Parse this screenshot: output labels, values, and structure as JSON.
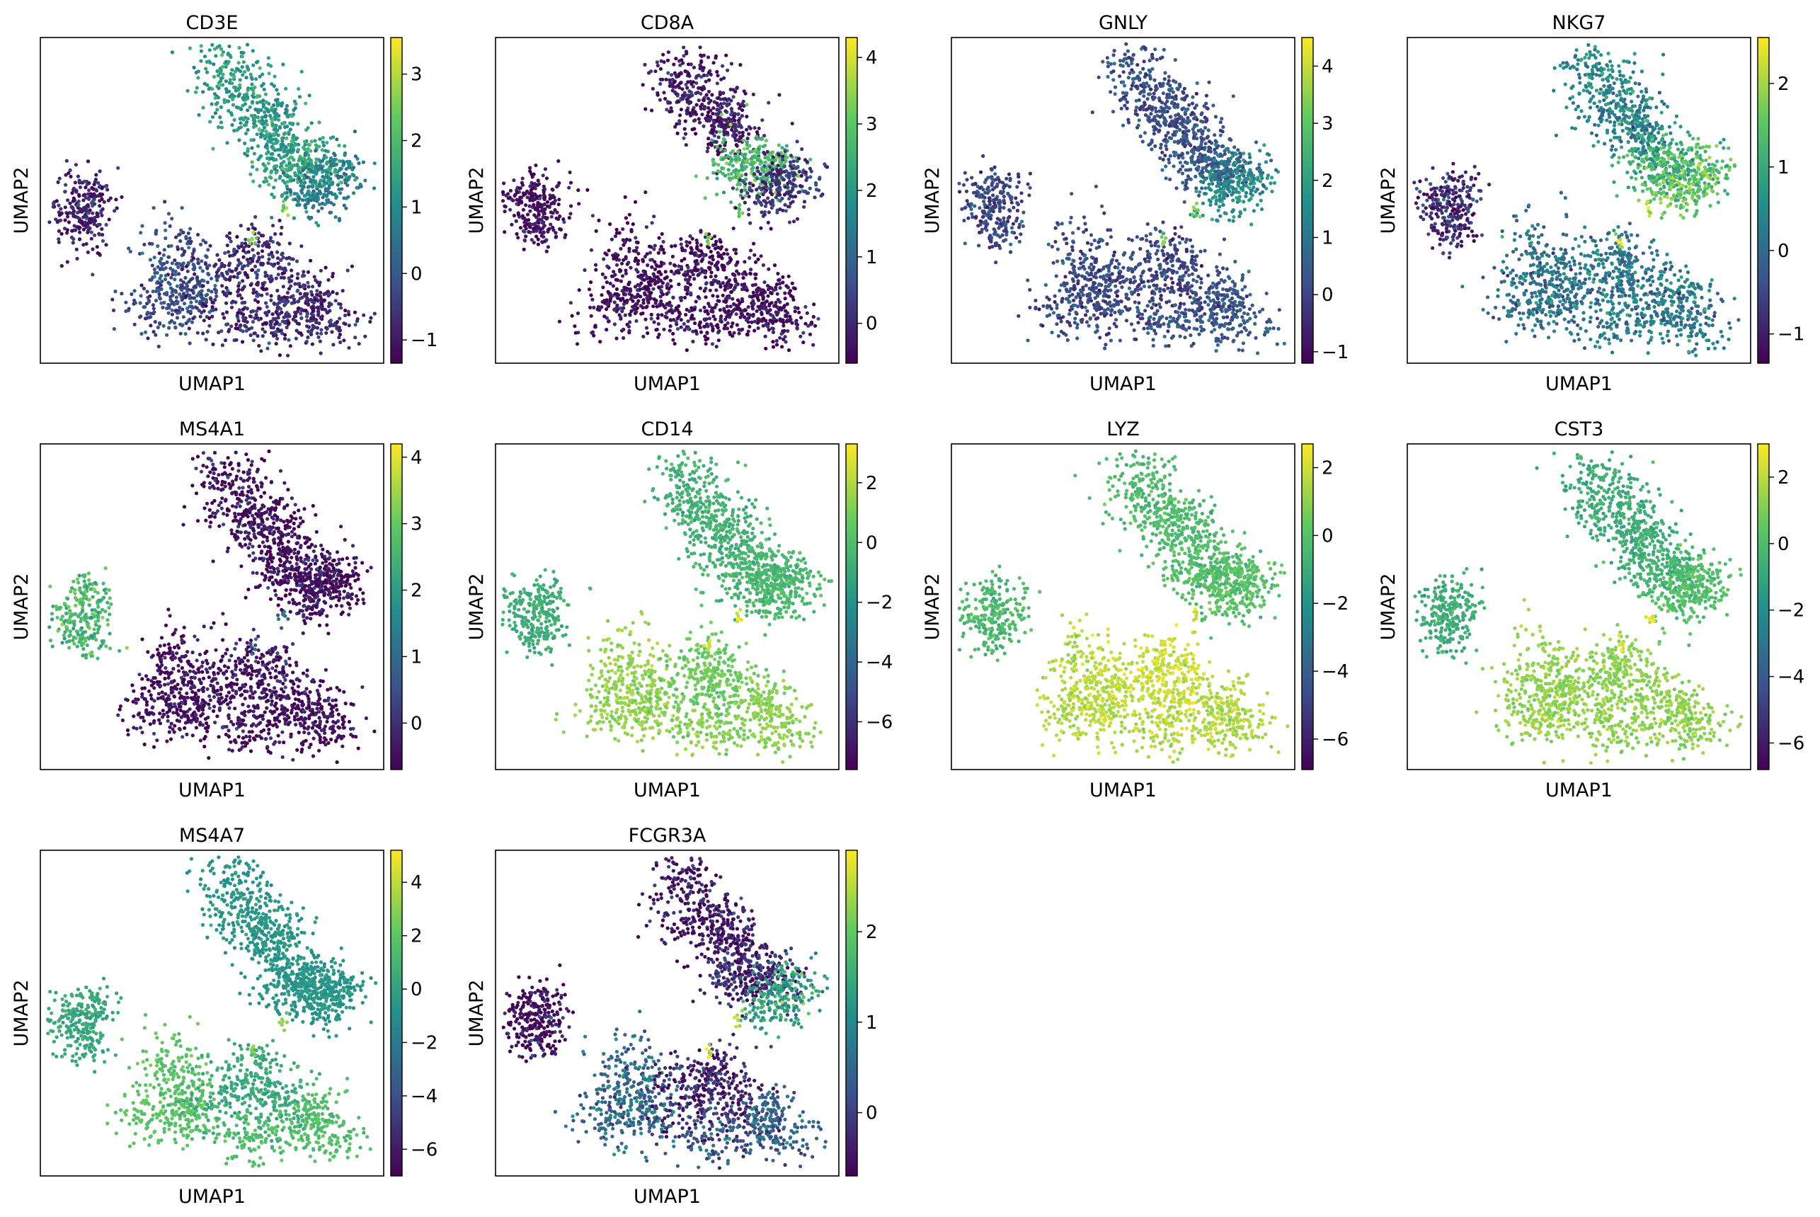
{
  "figure": {
    "xlabel": "UMAP1",
    "ylabel": "UMAP2"
  },
  "colormap": {
    "name": "viridis",
    "stops": [
      "#440154",
      "#3b528b",
      "#21918c",
      "#5ec962",
      "#fde725"
    ]
  },
  "chart_data": [
    {
      "type": "scatter",
      "title": "CD3E",
      "xlabel": "UMAP1",
      "ylabel": "UMAP2",
      "colorbar_range": [
        -1.35,
        3.55
      ],
      "colorbar_ticks": [
        -1,
        0,
        1,
        2,
        3
      ],
      "colorbar_tick_labels": [
        "−1",
        "0",
        "1",
        "2",
        "3"
      ],
      "cluster_values": {
        "tcell_upper": 1.3,
        "tcell_mid": 1.5,
        "tcell_right": 0.7,
        "bcell": -0.9,
        "mono_left": -0.2,
        "mono_center": -0.7,
        "mono_bottom": -0.8,
        "bridge": 2.6
      }
    },
    {
      "type": "scatter",
      "title": "CD8A",
      "xlabel": "UMAP1",
      "ylabel": "UMAP2",
      "colorbar_range": [
        -0.6,
        4.3
      ],
      "colorbar_ticks": [
        0,
        1,
        2,
        3,
        4
      ],
      "colorbar_tick_labels": [
        "0",
        "1",
        "2",
        "3",
        "4"
      ],
      "cluster_values": {
        "tcell_upper": -0.2,
        "tcell_mid": 2.8,
        "tcell_right": 0.2,
        "bcell": -0.4,
        "mono_left": -0.4,
        "mono_center": -0.4,
        "mono_bottom": -0.4,
        "bridge": 3.0
      }
    },
    {
      "type": "scatter",
      "title": "GNLY",
      "xlabel": "UMAP1",
      "ylabel": "UMAP2",
      "colorbar_range": [
        -1.2,
        4.5
      ],
      "colorbar_ticks": [
        -1,
        0,
        1,
        2,
        3,
        4
      ],
      "colorbar_tick_labels": [
        "−1",
        "0",
        "1",
        "2",
        "3",
        "4"
      ],
      "cluster_values": {
        "tcell_upper": 0.2,
        "tcell_mid": 0.4,
        "tcell_right": 1.6,
        "bcell": 0.0,
        "mono_left": 0.1,
        "mono_center": 0.0,
        "mono_bottom": 0.4,
        "bridge": 3.2
      }
    },
    {
      "type": "scatter",
      "title": "NKG7",
      "xlabel": "UMAP1",
      "ylabel": "UMAP2",
      "colorbar_range": [
        -1.35,
        2.55
      ],
      "colorbar_ticks": [
        -1,
        0,
        1,
        2
      ],
      "colorbar_tick_labels": [
        "−1",
        "0",
        "1",
        "2"
      ],
      "cluster_values": {
        "tcell_upper": 0.4,
        "tcell_mid": 1.1,
        "tcell_right": 1.5,
        "bcell": -0.9,
        "mono_left": 0.1,
        "mono_center": 0.2,
        "mono_bottom": 0.3,
        "bridge": 2.3
      }
    },
    {
      "type": "scatter",
      "title": "MS4A1",
      "xlabel": "UMAP1",
      "ylabel": "UMAP2",
      "colorbar_range": [
        -0.7,
        4.2
      ],
      "colorbar_ticks": [
        0,
        1,
        2,
        3,
        4
      ],
      "colorbar_tick_labels": [
        "0",
        "1",
        "2",
        "3",
        "4"
      ],
      "cluster_values": {
        "tcell_upper": -0.5,
        "tcell_mid": -0.5,
        "tcell_right": -0.5,
        "bcell": 2.6,
        "mono_left": -0.5,
        "mono_center": -0.4,
        "mono_bottom": -0.5,
        "bridge": 1.0
      }
    },
    {
      "type": "scatter",
      "title": "CD14",
      "xlabel": "UMAP1",
      "ylabel": "UMAP2",
      "colorbar_range": [
        -7.6,
        3.3
      ],
      "colorbar_ticks": [
        -6,
        -4,
        -2,
        0,
        2
      ],
      "colorbar_tick_labels": [
        "−6",
        "−4",
        "−2",
        "0",
        "2"
      ],
      "cluster_values": {
        "tcell_upper": -0.6,
        "tcell_mid": -0.4,
        "tcell_right": -0.2,
        "bcell": -0.8,
        "mono_left": 1.5,
        "mono_center": 0.8,
        "mono_bottom": 1.4,
        "bridge": 2.6
      }
    },
    {
      "type": "scatter",
      "title": "LYZ",
      "xlabel": "UMAP1",
      "ylabel": "UMAP2",
      "colorbar_range": [
        -6.9,
        2.7
      ],
      "colorbar_ticks": [
        -6,
        -4,
        -2,
        0,
        2
      ],
      "colorbar_tick_labels": [
        "−6",
        "−4",
        "−2",
        "0",
        "2"
      ],
      "cluster_values": {
        "tcell_upper": -0.3,
        "tcell_mid": -0.2,
        "tcell_right": 0.0,
        "bcell": -0.4,
        "mono_left": 1.6,
        "mono_center": 1.9,
        "mono_bottom": 1.5,
        "bridge": 2.2
      }
    },
    {
      "type": "scatter",
      "title": "CST3",
      "xlabel": "UMAP1",
      "ylabel": "UMAP2",
      "colorbar_range": [
        -6.8,
        3.0
      ],
      "colorbar_ticks": [
        -6,
        -4,
        -2,
        0,
        2
      ],
      "colorbar_tick_labels": [
        "−6",
        "−4",
        "−2",
        "0",
        "2"
      ],
      "cluster_values": {
        "tcell_upper": -0.7,
        "tcell_mid": -0.4,
        "tcell_right": 0.1,
        "bcell": -0.7,
        "mono_left": 1.4,
        "mono_center": 1.3,
        "mono_bottom": 1.3,
        "bridge": 2.7
      }
    },
    {
      "type": "scatter",
      "title": "MS4A7",
      "xlabel": "UMAP1",
      "ylabel": "UMAP2",
      "colorbar_range": [
        -7.0,
        5.2
      ],
      "colorbar_ticks": [
        -6,
        -4,
        -2,
        0,
        2,
        4
      ],
      "colorbar_tick_labels": [
        "−6",
        "−4",
        "−2",
        "0",
        "2",
        "4"
      ],
      "cluster_values": {
        "tcell_upper": -0.6,
        "tcell_mid": -0.7,
        "tcell_right": -0.6,
        "bcell": 0.3,
        "mono_left": 1.9,
        "mono_center": 0.4,
        "mono_bottom": 1.6,
        "bridge": 3.0
      }
    },
    {
      "type": "scatter",
      "title": "FCGR3A",
      "xlabel": "UMAP1",
      "ylabel": "UMAP2",
      "colorbar_range": [
        -0.7,
        2.9
      ],
      "colorbar_ticks": [
        0,
        1,
        2
      ],
      "colorbar_tick_labels": [
        "0",
        "1",
        "2"
      ],
      "cluster_values": {
        "tcell_upper": -0.5,
        "tcell_mid": -0.3,
        "tcell_right": 1.3,
        "bcell": -0.6,
        "mono_left": 0.5,
        "mono_center": -0.3,
        "mono_bottom": 0.4,
        "bridge": 2.6
      }
    }
  ]
}
